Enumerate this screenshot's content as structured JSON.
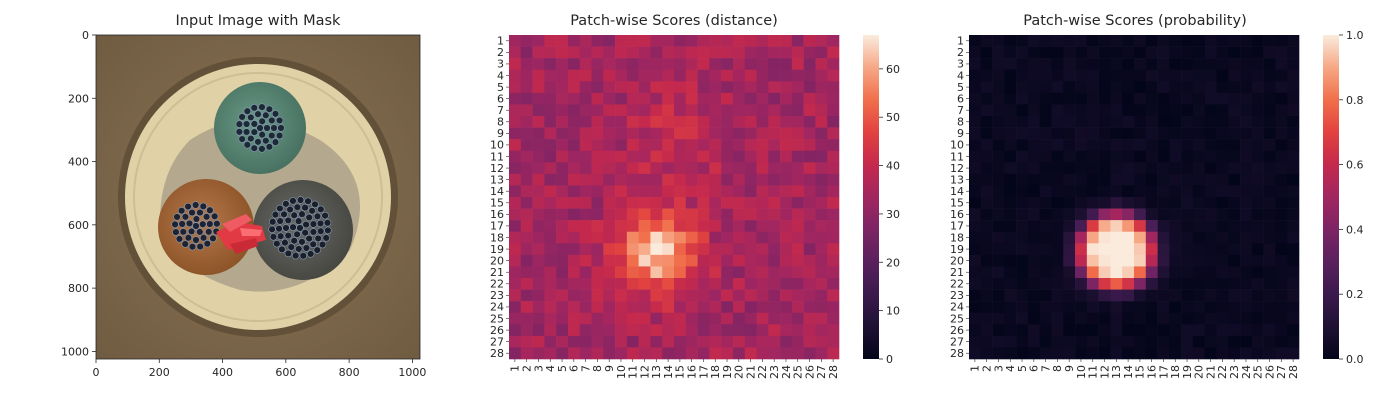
{
  "chart_data": [
    {
      "type": "image",
      "title": "Input Image with Mask",
      "xticks": [
        0,
        200,
        400,
        600,
        800,
        1000
      ],
      "yticks": [
        0,
        200,
        400,
        600,
        800,
        1000
      ],
      "xlim": [
        0,
        1024
      ],
      "ylim": [
        1024,
        0
      ],
      "image": "cable cross-section with three cores (green, brown, grey) and a red anomaly",
      "colors": {
        "background": "#7a6448",
        "jacket": "#e0d2a6",
        "core_green": "#5f8c78",
        "core_brown": "#a86b3c",
        "core_grey": "#5d5e5a",
        "defect": "#e23a44"
      }
    },
    {
      "type": "heatmap",
      "title": "Patch-wise Scores (distance)",
      "colormap": "rocket",
      "grid_size": 28,
      "row_labels": [
        "1",
        "2",
        "3",
        "4",
        "5",
        "6",
        "7",
        "8",
        "9",
        "10",
        "11",
        "12",
        "13",
        "14",
        "15",
        "16",
        "17",
        "18",
        "19",
        "20",
        "21",
        "22",
        "23",
        "24",
        "25",
        "26",
        "27",
        "28"
      ],
      "col_labels": [
        "1",
        "2",
        "3",
        "4",
        "5",
        "6",
        "7",
        "8",
        "9",
        "10",
        "11",
        "12",
        "13",
        "14",
        "15",
        "16",
        "17",
        "18",
        "19",
        "20",
        "21",
        "22",
        "23",
        "24",
        "25",
        "26",
        "27",
        "28"
      ],
      "vmin": 0,
      "vmax": 67,
      "colorbar_ticks": [
        0,
        10,
        20,
        30,
        40,
        50,
        60
      ],
      "baseline": 34,
      "hotspots": [
        {
          "row": 19.2,
          "col": 13.0,
          "peak": 31,
          "sigma": 2.4
        },
        {
          "row": 9.2,
          "col": 14.8,
          "peak": 7,
          "sigma": 2.8
        }
      ]
    },
    {
      "type": "heatmap",
      "title": "Patch-wise Scores (probability)",
      "colormap": "rocket",
      "grid_size": 28,
      "row_labels": [
        "1",
        "2",
        "3",
        "4",
        "5",
        "6",
        "7",
        "8",
        "9",
        "10",
        "11",
        "12",
        "13",
        "14",
        "15",
        "16",
        "17",
        "18",
        "19",
        "20",
        "21",
        "22",
        "23",
        "24",
        "25",
        "26",
        "27",
        "28"
      ],
      "col_labels": [
        "1",
        "2",
        "3",
        "4",
        "5",
        "6",
        "7",
        "8",
        "9",
        "10",
        "11",
        "12",
        "13",
        "14",
        "15",
        "16",
        "17",
        "18",
        "19",
        "20",
        "21",
        "22",
        "23",
        "24",
        "25",
        "26",
        "27",
        "28"
      ],
      "vmin": 0.0,
      "vmax": 1.0,
      "colorbar_ticks": [
        0.0,
        0.2,
        0.4,
        0.6,
        0.8,
        1.0
      ],
      "colorbar_tick_labels": [
        "0.0",
        "0.2",
        "0.4",
        "0.6",
        "0.8",
        "1.0"
      ],
      "hotspot": {
        "row": 19.2,
        "col": 13.0
      }
    }
  ]
}
